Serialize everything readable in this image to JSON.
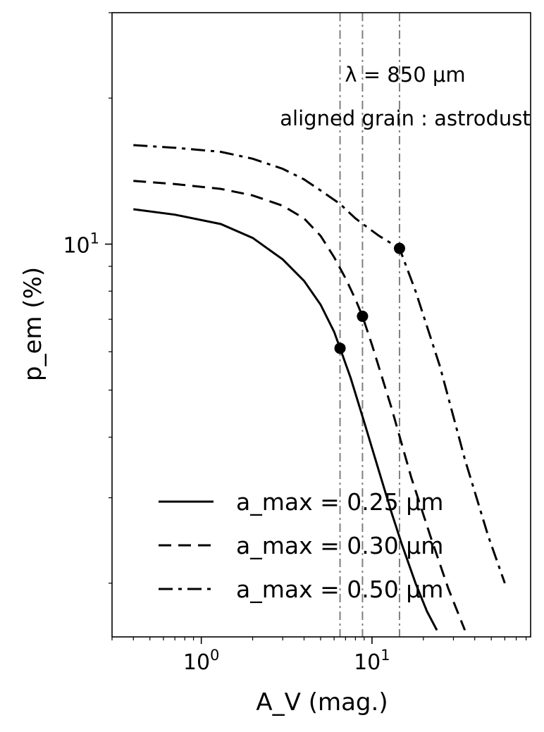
{
  "chart_data": {
    "type": "line",
    "title": "",
    "xlabel": "A_V (mag.)",
    "ylabel": "p_em (%)",
    "xscale": "log",
    "yscale": "log",
    "xlim": [
      0.3,
      85
    ],
    "ylim": [
      1.55,
      30
    ],
    "xticks": [
      {
        "value": 1,
        "label": "10^0"
      },
      {
        "value": 10,
        "label": "10^1"
      }
    ],
    "yticks": [
      {
        "value": 10,
        "label": "10^1"
      }
    ],
    "grid": false,
    "legend_position": "lower-left",
    "annotations": [
      "λ = 850 μm",
      "aligned grain : astrodust"
    ],
    "vlines": [
      6.5,
      8.8,
      14.5
    ],
    "markers": [
      {
        "x": 6.5,
        "y": 6.1
      },
      {
        "x": 8.8,
        "y": 7.1
      },
      {
        "x": 14.5,
        "y": 9.8
      }
    ],
    "series": [
      {
        "name": "a_max = 0.25 μm",
        "style": "solid",
        "x": [
          0.4,
          0.7,
          1.3,
          2.0,
          3.0,
          4.0,
          5.0,
          6.0,
          6.5,
          7.5,
          9.0,
          11.0,
          13.0,
          15.0,
          18.0,
          21.0,
          24.0
        ],
        "y": [
          11.8,
          11.5,
          11.0,
          10.3,
          9.3,
          8.4,
          7.5,
          6.6,
          6.1,
          5.3,
          4.3,
          3.4,
          2.8,
          2.4,
          2.0,
          1.75,
          1.6
        ]
      },
      {
        "name": "a_max = 0.30 μm",
        "style": "dashed",
        "x": [
          0.4,
          0.7,
          1.3,
          2.0,
          3.0,
          4.0,
          5.0,
          6.0,
          7.0,
          8.0,
          8.8,
          10.0,
          13.0,
          17.0,
          22.0,
          28.0,
          35.0
        ],
        "y": [
          13.5,
          13.3,
          13.0,
          12.6,
          12.0,
          11.3,
          10.4,
          9.4,
          8.5,
          7.7,
          7.1,
          6.2,
          4.6,
          3.3,
          2.5,
          1.95,
          1.6
        ]
      },
      {
        "name": "a_max = 0.50 μm",
        "style": "dashdot",
        "x": [
          0.4,
          0.7,
          1.3,
          2.0,
          3.0,
          4.0,
          5.0,
          6.5,
          8.0,
          9.5,
          11.0,
          14.5,
          18.0,
          25.0,
          35.0,
          48.0,
          60.0
        ],
        "y": [
          16.0,
          15.8,
          15.5,
          15.0,
          14.3,
          13.6,
          12.9,
          12.1,
          11.3,
          10.8,
          10.4,
          9.8,
          8.0,
          5.6,
          3.6,
          2.5,
          2.0
        ]
      }
    ]
  }
}
